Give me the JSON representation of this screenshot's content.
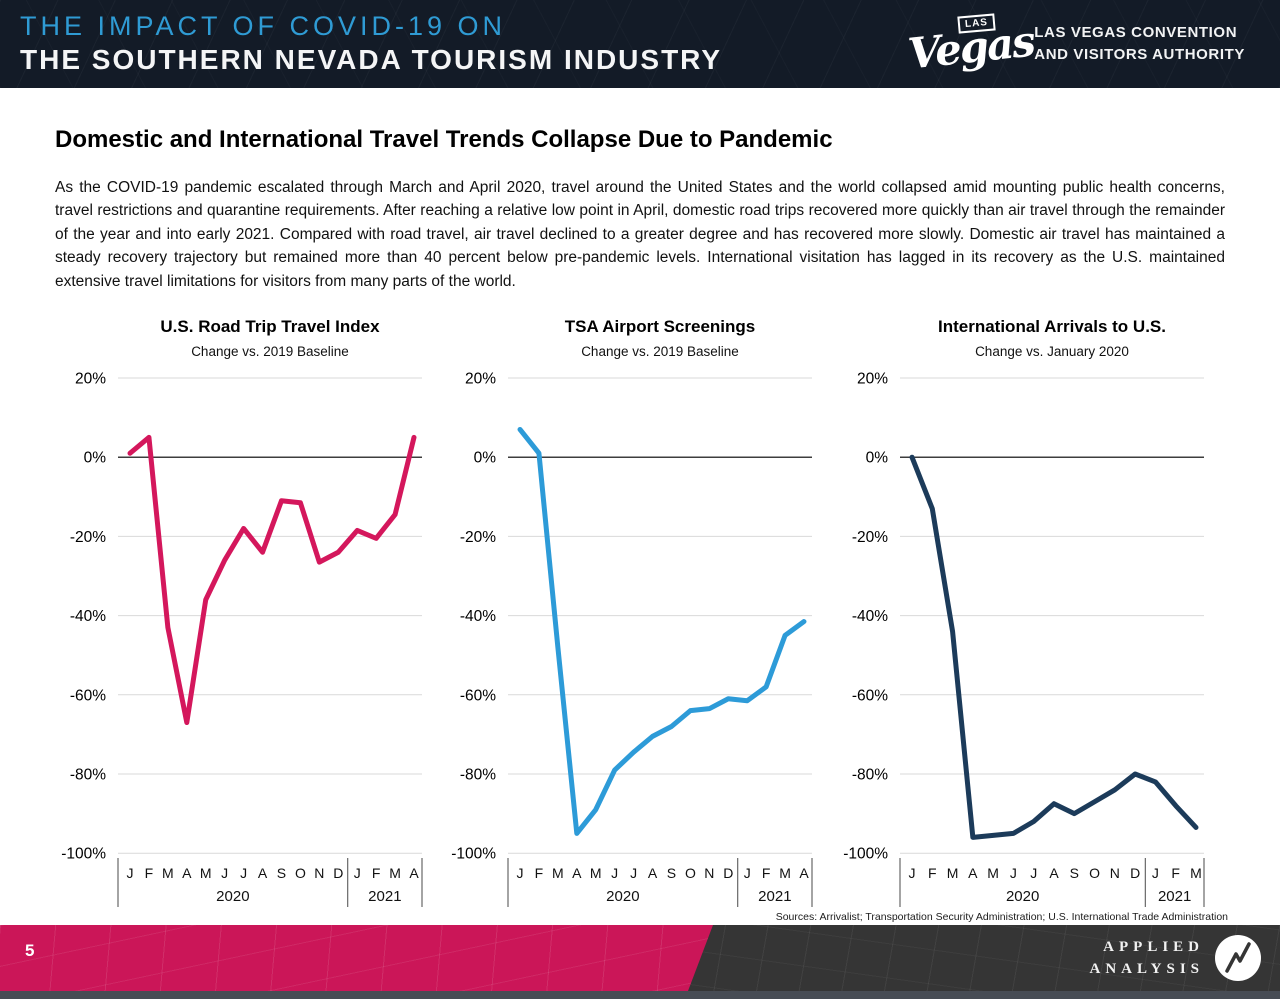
{
  "slide": {
    "header": {
      "title_line1": "THE IMPACT OF COVID-19 ON",
      "title_line2": "THE SOUTHERN NEVADA TOURISM INDUSTRY",
      "logo": {
        "las": "LAS",
        "vegas": "Vegas",
        "org_line1": "LAS VEGAS CONVENTION",
        "org_line2": "AND VISITORS AUTHORITY"
      }
    },
    "heading": "Domestic and International Travel Trends Collapse Due to Pandemic",
    "paragraph": "As the COVID-19 pandemic escalated through March and April 2020, travel around the United States and the world collapsed amid mounting public health concerns, travel restrictions and quarantine requirements. After reaching a relative low point in April, domestic road trips recovered more quickly than air travel through the remainder of the year and into early 2021. Compared with road travel, air travel declined to a greater degree and has recovered more slowly. Domestic air travel has maintained a steady recovery trajectory but remained more than 40 percent below pre-pandemic levels. International visitation has lagged in its recovery as the U.S. maintained extensive travel limitations for visitors from many parts of the world.",
    "sources": "Sources: Arrivalist; Transportation Security Administration; U.S. International Trade Administration",
    "page_number": "5",
    "brand": {
      "line1": "APPLIED",
      "line2": "ANALYSIS"
    }
  },
  "colors": {
    "header_bg": "#131b27",
    "header_accent_blue": "#2f9bd4",
    "footer_pink": "#cb1658",
    "footer_charcoal": "#353535"
  },
  "chart_data": [
    {
      "type": "line",
      "title": "U.S. Road Trip Travel Index",
      "subtitle": "Change vs. 2019 Baseline",
      "color": "#d4175c",
      "ylim": [
        -100,
        20
      ],
      "grid": true,
      "legend": "none",
      "yticks": [
        20,
        0,
        -20,
        -40,
        -60,
        -80,
        -100
      ],
      "ytick_labels": [
        "20%",
        "0%",
        "-20%",
        "-40%",
        "-60%",
        "-80%",
        "-100%"
      ],
      "x_groups": [
        {
          "year": "2020",
          "months": [
            "J",
            "F",
            "M",
            "A",
            "M",
            "J",
            "J",
            "A",
            "S",
            "O",
            "N",
            "D"
          ]
        },
        {
          "year": "2021",
          "months": [
            "J",
            "F",
            "M",
            "A"
          ]
        }
      ],
      "values": [
        1,
        5,
        -43,
        -67,
        -36,
        -26,
        -18,
        -24,
        -11,
        -11.5,
        -26.5,
        -24,
        -18.5,
        -20.5,
        -14.5,
        5
      ]
    },
    {
      "type": "line",
      "title": "TSA Airport Screenings",
      "subtitle": "Change vs. 2019 Baseline",
      "color": "#2d9bd8",
      "ylim": [
        -100,
        20
      ],
      "grid": true,
      "legend": "none",
      "yticks": [
        20,
        0,
        -20,
        -40,
        -60,
        -80,
        -100
      ],
      "ytick_labels": [
        "20%",
        "0%",
        "-20%",
        "-40%",
        "-60%",
        "-80%",
        "-100%"
      ],
      "x_groups": [
        {
          "year": "2020",
          "months": [
            "J",
            "F",
            "M",
            "A",
            "M",
            "J",
            "J",
            "A",
            "S",
            "O",
            "N",
            "D"
          ]
        },
        {
          "year": "2021",
          "months": [
            "J",
            "F",
            "M",
            "A"
          ]
        }
      ],
      "values": [
        7,
        1,
        -48,
        -95,
        -89,
        -79,
        -74.5,
        -70.5,
        -68,
        -64,
        -63.5,
        -61,
        -61.5,
        -58,
        -45,
        -41.5
      ]
    },
    {
      "type": "line",
      "title": "International Arrivals to U.S.",
      "subtitle": "Change vs. January 2020",
      "color": "#1c3b5a",
      "ylim": [
        -100,
        20
      ],
      "grid": true,
      "legend": "none",
      "yticks": [
        20,
        0,
        -20,
        -40,
        -60,
        -80,
        -100
      ],
      "ytick_labels": [
        "20%",
        "0%",
        "-20%",
        "-40%",
        "-60%",
        "-80%",
        "-100%"
      ],
      "x_groups": [
        {
          "year": "2020",
          "months": [
            "J",
            "F",
            "M",
            "A",
            "M",
            "J",
            "J",
            "A",
            "S",
            "O",
            "N",
            "D"
          ]
        },
        {
          "year": "2021",
          "months": [
            "J",
            "F",
            "M"
          ]
        }
      ],
      "values": [
        0,
        -13,
        -44,
        -96,
        -95.5,
        -95,
        -92,
        -87.5,
        -90,
        -87,
        -84,
        -80,
        -82,
        -88,
        -93.5
      ]
    }
  ]
}
